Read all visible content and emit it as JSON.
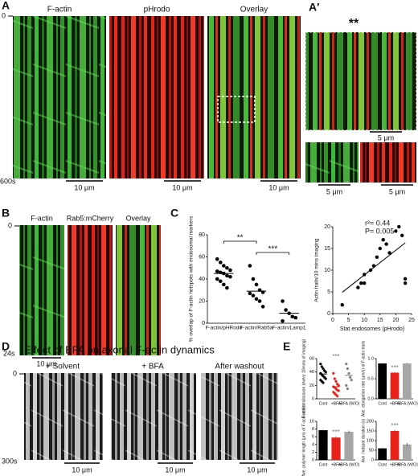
{
  "panel_a": {
    "label": "A",
    "titles": [
      "F-actin",
      "pHrodo",
      "Overlay"
    ],
    "time_start": "0",
    "time_end": "600s",
    "scale_bars": [
      "10 μm",
      "10 μm",
      "10 μm"
    ]
  },
  "panel_a_prime": {
    "label": "A′",
    "marker": "**",
    "scale_bars": [
      "5 μm",
      "5 μm",
      "5 μm"
    ]
  },
  "panel_b": {
    "label": "B",
    "titles": [
      "F-actin",
      "Rab5:mCherry",
      "Overlay"
    ],
    "time_start": "0",
    "time_end": "24s",
    "scale_bars": [
      "10 μm"
    ]
  },
  "panel_c": {
    "label": "C"
  },
  "panel_d": {
    "label": "D",
    "title": "Effect of BFA on axonal F-actin dynamics",
    "titles": [
      "+ Solvent",
      "+ BFA",
      "After washout"
    ],
    "time_start": "0",
    "time_end": "300s",
    "scale_bars": [
      "10 μm",
      "10 μm",
      "10 μm"
    ]
  },
  "panel_e": {
    "label": "E"
  },
  "chart_data": [
    {
      "type": "dot",
      "ylabel": "% overlap of F-actin hotspots with endosomal markers",
      "categories": [
        "F-actin/pHRodo",
        "F-actin/Rab5a",
        "F-actin/Lamp1"
      ],
      "values": [
        [
          58,
          55,
          52,
          50,
          48,
          47,
          46,
          45,
          43,
          42,
          40,
          38,
          35,
          32
        ],
        [
          52,
          40,
          35,
          30,
          28,
          27,
          25,
          22,
          20,
          15
        ],
        [
          20,
          12,
          9,
          6,
          5,
          2
        ]
      ],
      "means": [
        45,
        29,
        9
      ],
      "colors": [
        "#000000",
        "#000000",
        "#000000"
      ],
      "ylim": [
        0,
        80
      ],
      "yticks": [
        0,
        20,
        40,
        60,
        80
      ],
      "brackets": [
        "**",
        "***"
      ]
    },
    {
      "type": "scatter",
      "xlabel": "Stat endosomes (pHrodo)",
      "ylabel": "Actin trails/10 mins imaging",
      "x": [
        3,
        8,
        9,
        10,
        10,
        12,
        13,
        14,
        15,
        16,
        17,
        18,
        20,
        21,
        22,
        23,
        23
      ],
      "values": [
        2,
        6,
        7,
        7,
        9,
        10,
        11,
        13,
        15,
        17,
        16,
        14,
        19,
        20,
        18,
        8,
        7
      ],
      "color": "#000000",
      "xlim": [
        0,
        25
      ],
      "xticks": [
        0,
        5,
        10,
        15,
        20,
        25
      ],
      "ylim": [
        0,
        20
      ],
      "yticks": [
        0,
        5,
        10,
        15,
        20
      ],
      "annotations": [
        "r²= 0.44",
        "P= 0.005"
      ]
    },
    {
      "type": "dot",
      "ylabel": "F-actin trails/axon (every 10mins of imaging)",
      "categories": [
        "Cont",
        "+BFA",
        "+BFA (W/O)"
      ],
      "values": [
        [
          52,
          48,
          45,
          42,
          40,
          38,
          36,
          34,
          32,
          30,
          28,
          26,
          24
        ],
        [
          38,
          30,
          26,
          22,
          20,
          18,
          17,
          15,
          13,
          12,
          10,
          8,
          6,
          4
        ],
        [
          52,
          45,
          38,
          32,
          28,
          20,
          15
        ]
      ],
      "means": [
        37,
        18,
        35
      ],
      "colors": [
        "#000000",
        "#e8221a",
        "#7f7f7f"
      ],
      "ylim": [
        0,
        60
      ],
      "yticks": [
        0,
        20,
        40,
        60
      ],
      "stars": [
        null,
        "***",
        null
      ]
    },
    {
      "type": "bar",
      "ylabel": "Ave. elongation rate (μm/s) of F-actin trails",
      "categories": [
        "Cont",
        "+BFA",
        "+BFA (W/O)"
      ],
      "values": [
        0.88,
        0.65,
        0.88
      ],
      "errors": [
        0.01,
        0.01,
        0.01
      ],
      "colors": [
        "#000000",
        "#e8221a",
        "#a6a6a6"
      ],
      "ylim": [
        0,
        1
      ],
      "yticks": [
        {
          "value": 0,
          "label": "0.0"
        },
        {
          "value": 0.5,
          "label": "0.5"
        },
        {
          "value": 1,
          "label": "1.0"
        }
      ],
      "stars": [
        null,
        "***",
        null
      ]
    },
    {
      "type": "bar",
      "ylabel": "Ave. polymer length (μm) of F-actin trails",
      "categories": [
        "Cont",
        "+BFA",
        "+BFA (W/O)"
      ],
      "values": [
        7.7,
        5.8,
        7.3
      ],
      "errors": [
        0.2,
        0.3,
        0.3
      ],
      "colors": [
        "#000000",
        "#e8221a",
        "#a6a6a6"
      ],
      "ylim": [
        0,
        10
      ],
      "yticks": [
        0,
        2,
        4,
        6,
        8,
        10
      ],
      "stars": [
        null,
        "***",
        null
      ]
    },
    {
      "type": "bar",
      "ylabel": "Ave. hotspot duration (s)",
      "categories": [
        "Cont",
        "+BFA",
        "+BFA (W/O)"
      ],
      "values": [
        60,
        150,
        80
      ],
      "errors": [
        3,
        5,
        8
      ],
      "colors": [
        "#000000",
        "#e8221a",
        "#a6a6a6"
      ],
      "ylim": [
        0,
        200
      ],
      "yticks": [
        0,
        50,
        100,
        150,
        200
      ],
      "stars": [
        null,
        "***",
        null
      ]
    }
  ]
}
